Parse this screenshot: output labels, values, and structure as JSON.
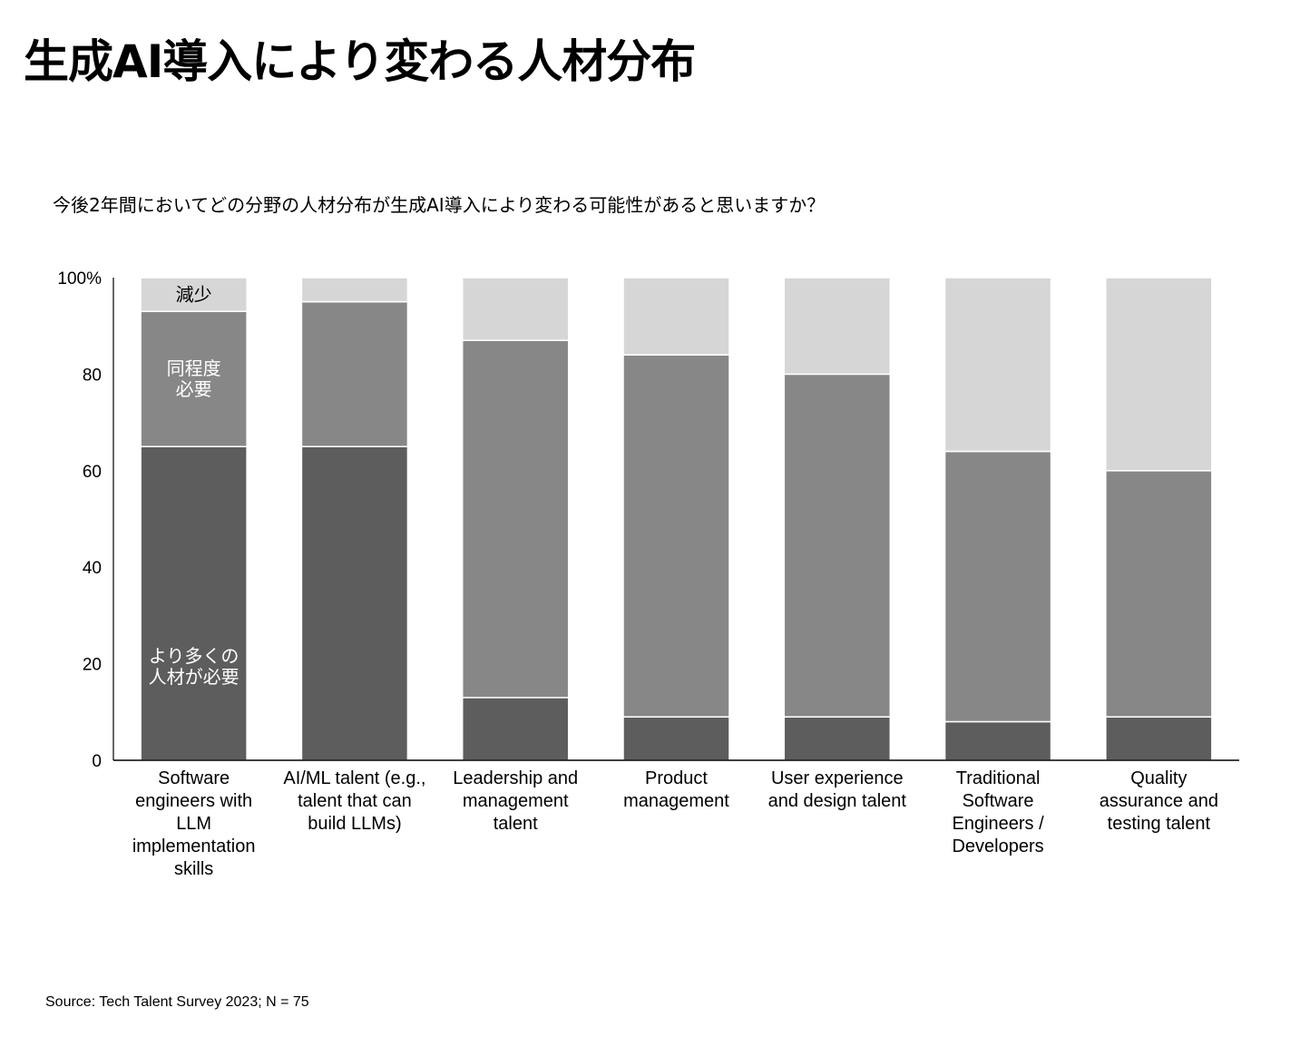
{
  "title": "生成AI導入により変わる人材分布",
  "source": "Source: Tech Talent Survey 2023; N = 75",
  "colors": {
    "more": "#5d5d5d",
    "same": "#878787",
    "less": "#d6d6d6"
  },
  "chart_data": {
    "type": "bar",
    "stacked": true,
    "title": "今後2年間においてどの分野の人材分布が生成AI導入により変わる可能性があると思いますか？",
    "xlabel": "",
    "ylabel": "",
    "ylim": [
      0,
      100
    ],
    "yticks": [
      "0",
      "20",
      "40",
      "60",
      "80",
      "100%"
    ],
    "grid": false,
    "categories": [
      [
        "Software",
        "engineers with",
        "LLM",
        "implementation",
        "skills"
      ],
      [
        "AI/ML talent (e.g.,",
        "talent that can",
        "build LLMs)"
      ],
      [
        "Leadership and",
        "management",
        "talent"
      ],
      [
        "Product",
        "management"
      ],
      [
        "User experience",
        "and design talent"
      ],
      [
        "Traditional",
        "Software",
        "Engineers /",
        "Developers"
      ],
      [
        "Quality",
        "assurance and",
        "testing talent"
      ]
    ],
    "series": [
      {
        "name": "より多くの人材が必要",
        "label_lines": [
          "より多くの",
          "人材が必要"
        ],
        "values": [
          65,
          65,
          13,
          9,
          9,
          8,
          9
        ]
      },
      {
        "name": "同程度必要",
        "label_lines": [
          "同程度",
          "必要"
        ],
        "values": [
          28,
          30,
          74,
          75,
          71,
          56,
          51
        ]
      },
      {
        "name": "減少",
        "label_lines": [
          "減少"
        ],
        "values": [
          7,
          5,
          13,
          16,
          20,
          36,
          40
        ]
      }
    ]
  }
}
